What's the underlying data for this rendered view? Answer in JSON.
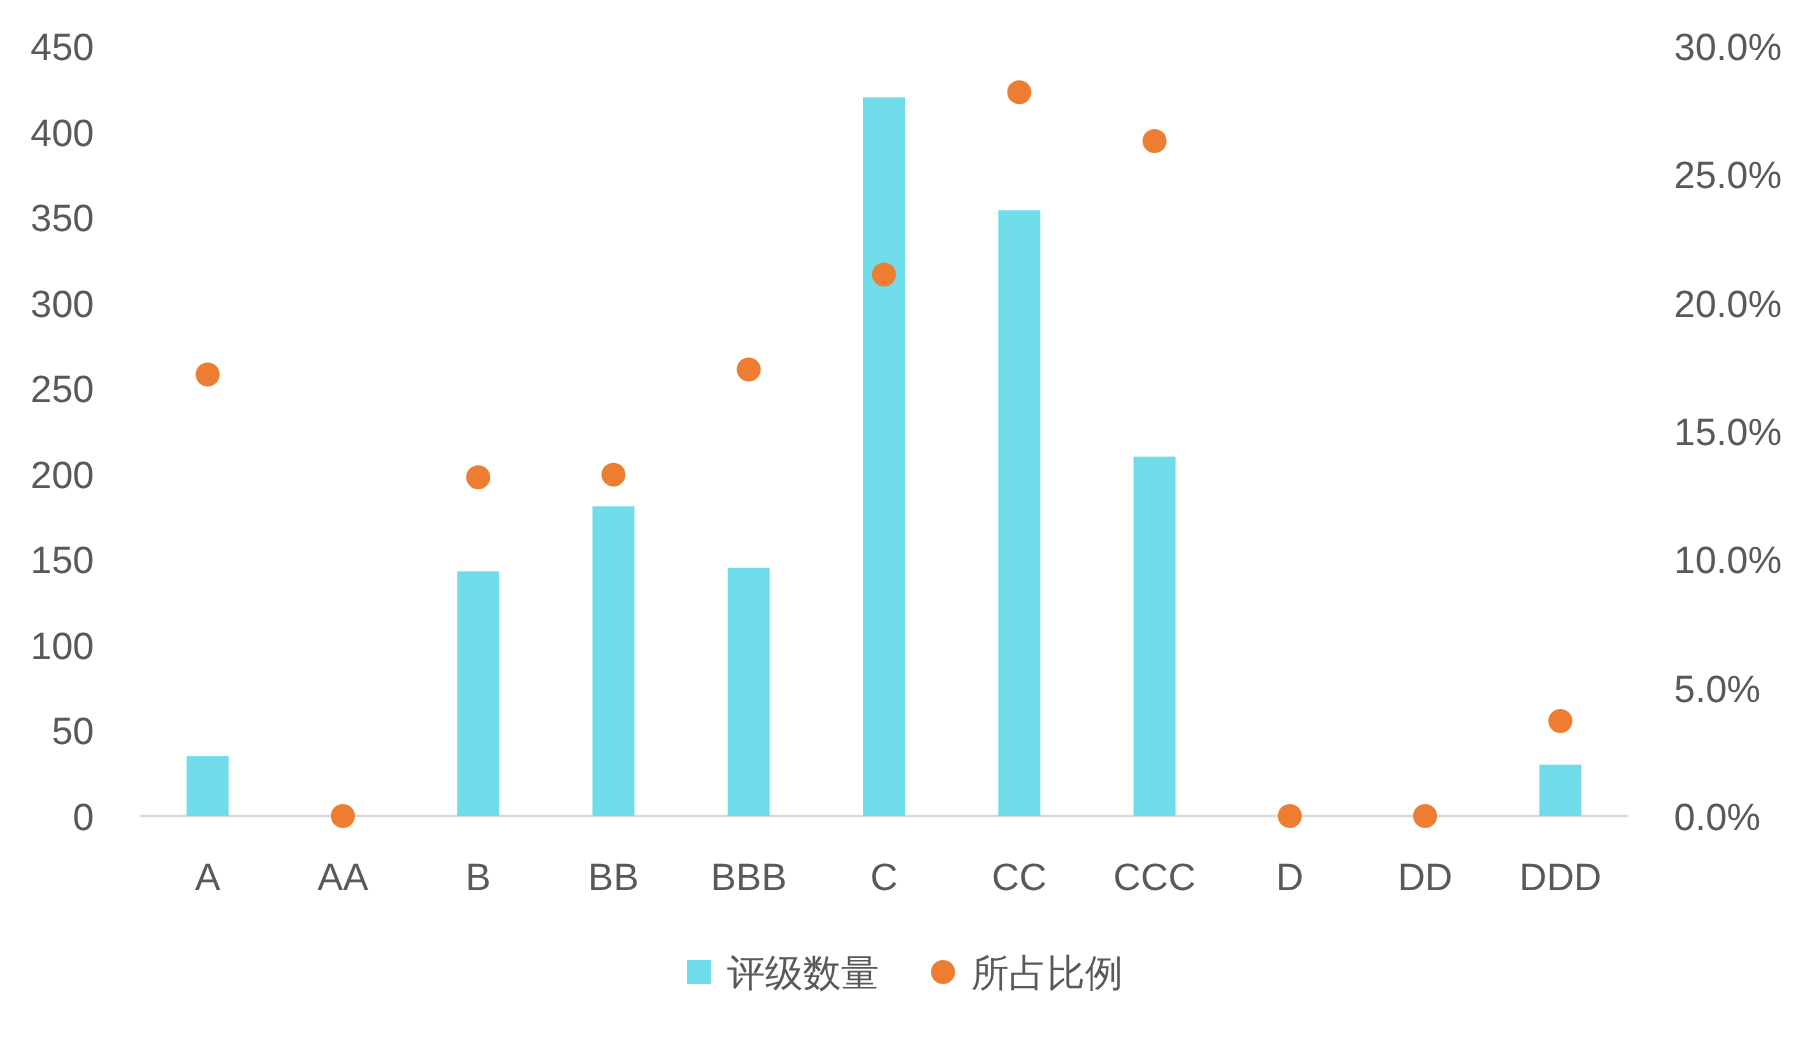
{
  "chart_data": {
    "type": "bar",
    "categories": [
      "A",
      "AA",
      "B",
      "BB",
      "BBB",
      "C",
      "CC",
      "CCC",
      "D",
      "DD",
      "DDD"
    ],
    "series": [
      {
        "name": "评级数量",
        "color": "#71dce9",
        "values": [
          35,
          0,
          143,
          181,
          145,
          420,
          354,
          210,
          0,
          0,
          30
        ]
      },
      {
        "name": "所占比例",
        "type": "scatter",
        "axis": "y2",
        "marker": "circle",
        "color": "#ed7d31",
        "values": [
          17.2,
          0,
          13.2,
          13.3,
          17.4,
          21.1,
          28.2,
          26.3,
          0,
          0,
          3.7
        ]
      }
    ],
    "ylim": [
      0,
      450
    ],
    "yticks": [
      0,
      50,
      100,
      150,
      200,
      250,
      300,
      350,
      400,
      450
    ],
    "y2lim": [
      0,
      30
    ],
    "y2ticks": [
      {
        "value": 0,
        "label": "0.0%"
      },
      {
        "value": 5,
        "label": "5.0%"
      },
      {
        "value": 10,
        "label": "10.0%"
      },
      {
        "value": 15,
        "label": "15.0%"
      },
      {
        "value": 20,
        "label": "20.0%"
      },
      {
        "value": 25,
        "label": "25.0%"
      },
      {
        "value": 30,
        "label": "30.0%"
      }
    ],
    "legend": "bottom"
  }
}
